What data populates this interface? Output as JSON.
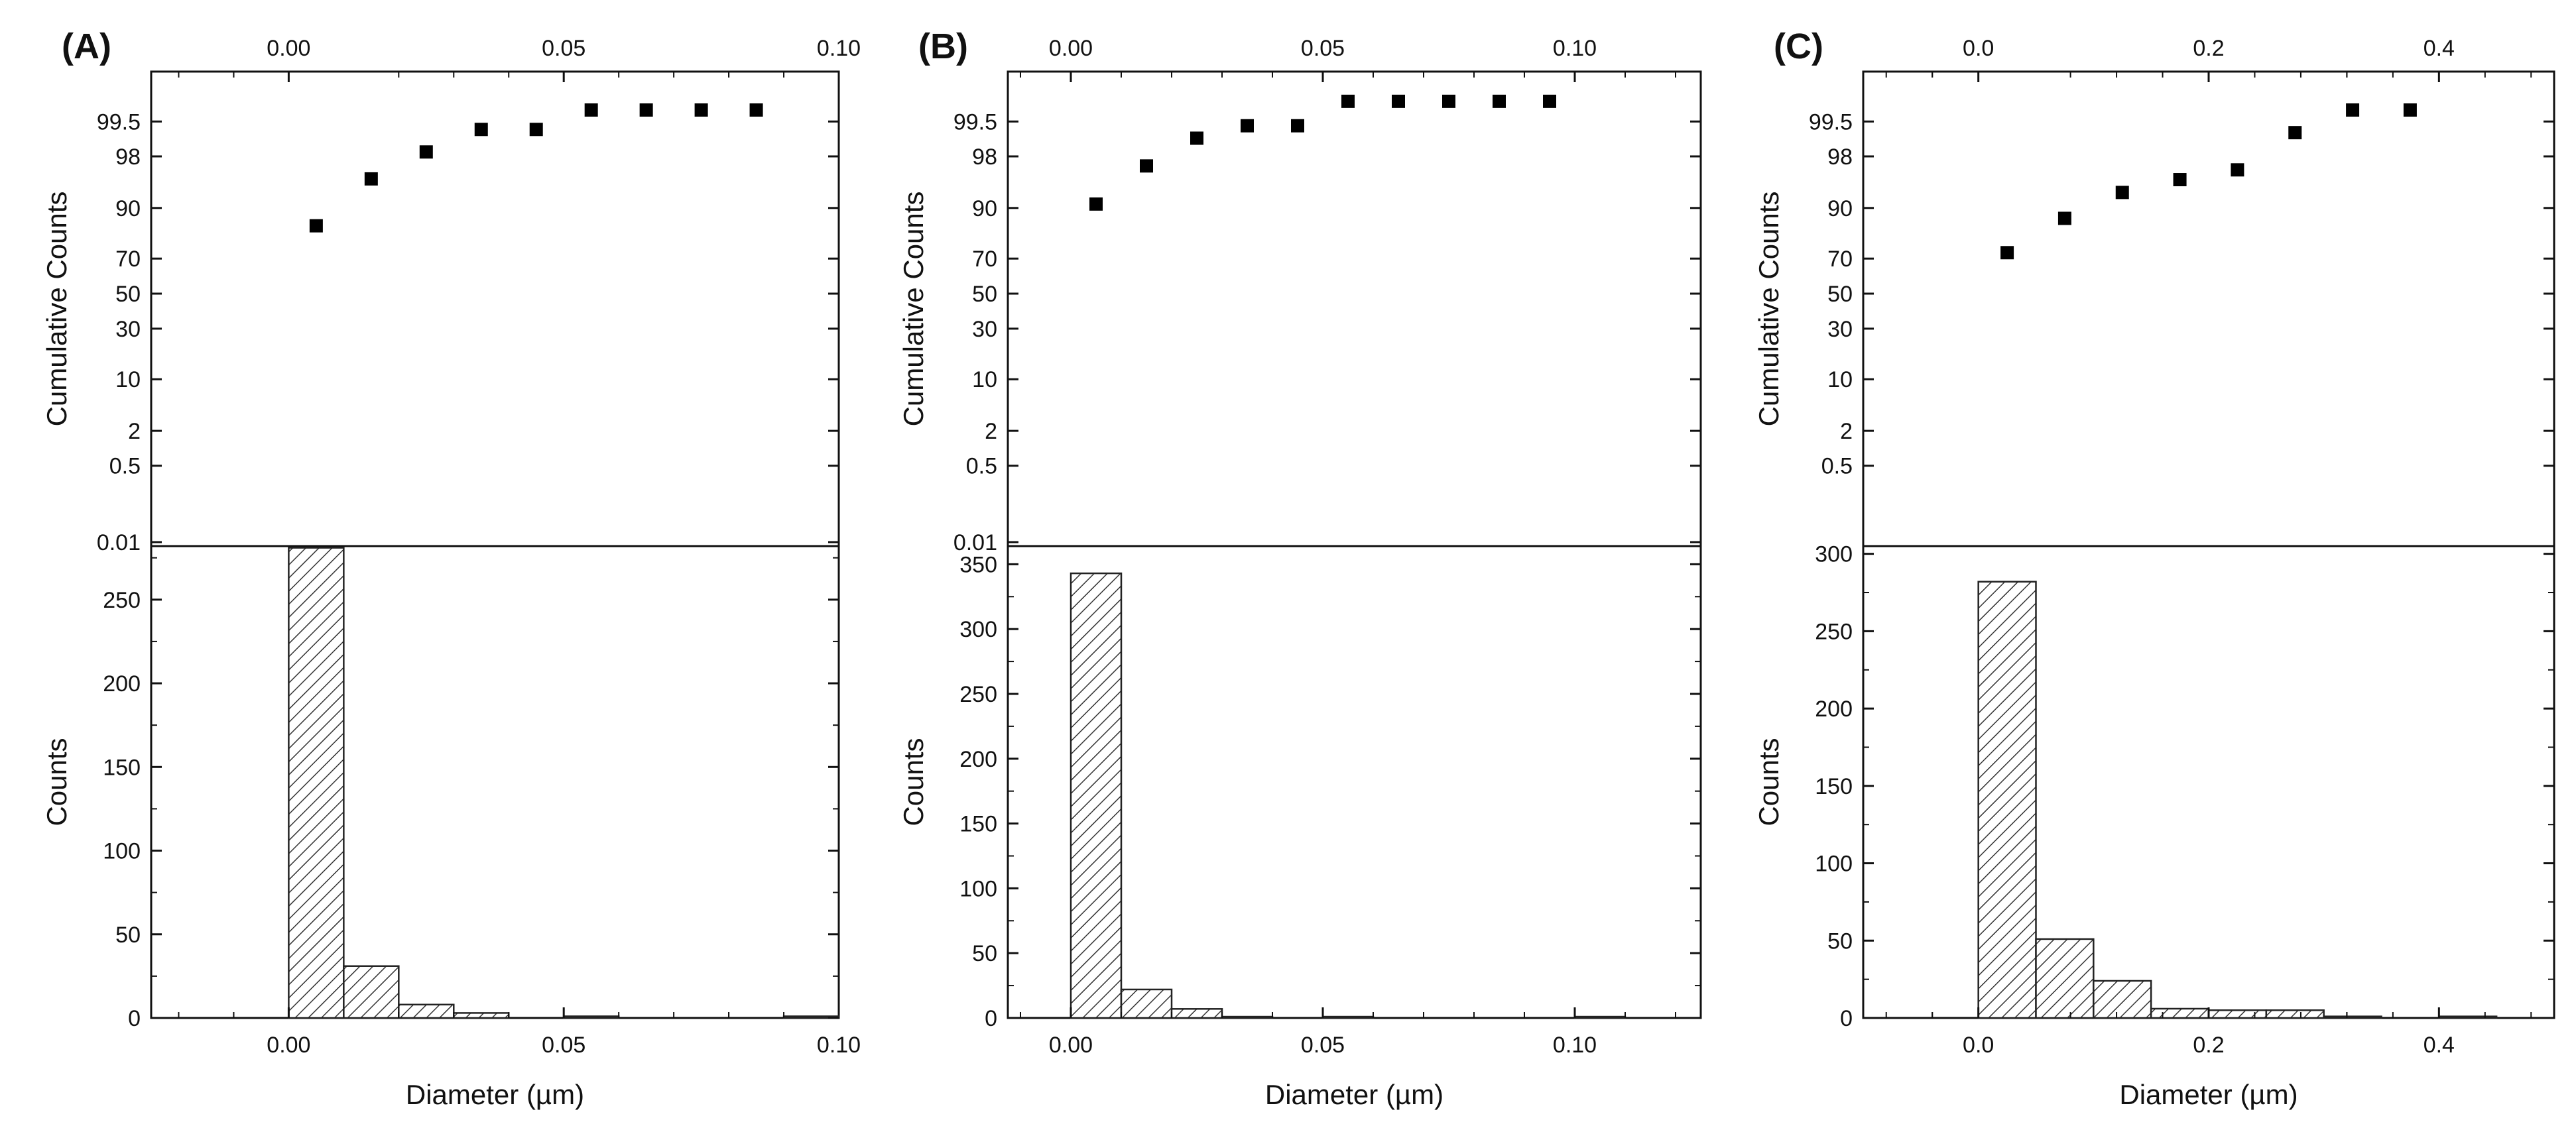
{
  "chart_data": [
    {
      "type": "scatter+histogram",
      "panel_label": "(A)",
      "top_axis_ticks": [
        "0.00",
        "0.05",
        "0.10"
      ],
      "top_axis_tick_values": [
        0.0,
        0.05,
        0.1
      ],
      "scatter": {
        "ylabel": "Cumulative Counts",
        "y_scale": "probability",
        "y_ticks": [
          "0.01",
          "0.5",
          "2",
          "10",
          "30",
          "50",
          "70",
          "90",
          "98",
          "99.5"
        ],
        "y_tick_values": [
          0.01,
          0.5,
          2,
          10,
          30,
          50,
          70,
          90,
          98,
          99.5
        ],
        "x": [
          0.005,
          0.015,
          0.025,
          0.035,
          0.045,
          0.055,
          0.065,
          0.075,
          0.085
        ],
        "y": [
          84.5,
          95.7,
          98.3,
          99.3,
          99.3,
          99.7,
          99.7,
          99.7,
          99.7
        ]
      },
      "histogram": {
        "ylabel": "Counts",
        "xlabel": "Diameter (µm)",
        "y_ticks": [
          "0",
          "50",
          "100",
          "150",
          "200",
          "250"
        ],
        "y_tick_values": [
          0,
          50,
          100,
          150,
          200,
          250
        ],
        "ylim": [
          0,
          282
        ],
        "x_ticks": [
          "0.00",
          "0.05",
          "0.10"
        ],
        "x_tick_values": [
          0.0,
          0.05,
          0.1
        ],
        "xlim": [
          -0.025,
          0.1
        ],
        "bin_edges": [
          0.0,
          0.01,
          0.02,
          0.03,
          0.04,
          0.05,
          0.06,
          0.07,
          0.08,
          0.09,
          0.1
        ],
        "values": [
          281,
          31,
          8,
          3,
          0,
          1,
          0,
          0,
          0,
          1
        ]
      }
    },
    {
      "type": "scatter+histogram",
      "panel_label": "(B)",
      "top_axis_ticks": [
        "0.00",
        "0.05",
        "0.10"
      ],
      "top_axis_tick_values": [
        0.0,
        0.05,
        0.1
      ],
      "scatter": {
        "ylabel": "Cumulative Counts",
        "y_scale": "probability",
        "y_ticks": [
          "0.01",
          "0.5",
          "2",
          "10",
          "30",
          "50",
          "70",
          "90",
          "98",
          "99.5"
        ],
        "y_tick_values": [
          0.01,
          0.5,
          2,
          10,
          30,
          50,
          70,
          90,
          98,
          99.5
        ],
        "x": [
          0.005,
          0.015,
          0.025,
          0.035,
          0.045,
          0.055,
          0.065,
          0.075,
          0.085,
          0.095
        ],
        "y": [
          91,
          97.2,
          99,
          99.4,
          99.4,
          99.8,
          99.8,
          99.8,
          99.8,
          99.8
        ]
      },
      "histogram": {
        "ylabel": "Counts",
        "xlabel": "Diameter (µm)",
        "y_ticks": [
          "0",
          "50",
          "100",
          "150",
          "200",
          "250",
          "300",
          "350"
        ],
        "y_tick_values": [
          0,
          50,
          100,
          150,
          200,
          250,
          300,
          350
        ],
        "ylim": [
          0,
          364
        ],
        "x_ticks": [
          "0.00",
          "0.05",
          "0.10"
        ],
        "x_tick_values": [
          0.0,
          0.05,
          0.1
        ],
        "xlim": [
          -0.0125,
          0.125
        ],
        "bin_edges": [
          0.0,
          0.01,
          0.02,
          0.03,
          0.04,
          0.05,
          0.06,
          0.07,
          0.08,
          0.09,
          0.1,
          0.11
        ],
        "values": [
          343,
          22,
          7,
          1,
          0,
          1,
          0,
          0,
          0,
          0,
          1
        ]
      }
    },
    {
      "type": "scatter+histogram",
      "panel_label": "(C)",
      "top_axis_ticks": [
        "0.0",
        "0.2",
        "0.4"
      ],
      "top_axis_tick_values": [
        0.0,
        0.2,
        0.4
      ],
      "scatter": {
        "ylabel": "Cumulative Counts",
        "y_scale": "probability",
        "y_ticks": [
          "0.5",
          "2",
          "10",
          "30",
          "50",
          "70",
          "90",
          "98",
          "99.5"
        ],
        "y_tick_values": [
          0.5,
          2,
          10,
          30,
          50,
          70,
          90,
          98,
          99.5
        ],
        "x": [
          0.025,
          0.075,
          0.125,
          0.175,
          0.225,
          0.275,
          0.325,
          0.375
        ],
        "y": [
          73,
          87,
          93.5,
          95.6,
          96.8,
          99.2,
          99.7,
          99.7
        ]
      },
      "histogram": {
        "ylabel": "Counts",
        "xlabel": "Diameter (µm)",
        "y_ticks": [
          "0",
          "50",
          "100",
          "150",
          "200",
          "250",
          "300"
        ],
        "y_tick_values": [
          0,
          50,
          100,
          150,
          200,
          250,
          300
        ],
        "ylim": [
          0,
          305
        ],
        "x_ticks": [
          "0.0",
          "0.2",
          "0.4"
        ],
        "x_tick_values": [
          0.0,
          0.2,
          0.4
        ],
        "xlim": [
          -0.1,
          0.5
        ],
        "bin_edges": [
          0.0,
          0.05,
          0.1,
          0.15,
          0.2,
          0.25,
          0.3,
          0.35,
          0.4,
          0.45
        ],
        "values": [
          282,
          51,
          24,
          6,
          5,
          5,
          1,
          0,
          1
        ]
      }
    }
  ]
}
